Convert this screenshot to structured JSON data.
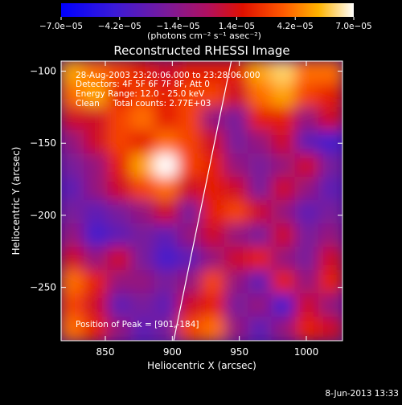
{
  "chart_data": {
    "type": "heatmap",
    "title": "Reconstructed RHESSI Image",
    "xlabel": "Heliocentric X (arcsec)",
    "ylabel": "Heliocentric Y (arcsec)",
    "xlim": [
      817,
      1027
    ],
    "ylim": [
      -287,
      -93
    ],
    "x_ticks": [
      850,
      900,
      950,
      1000
    ],
    "x_tick_labels": [
      "850",
      "900",
      "950",
      "1000"
    ],
    "y_ticks": [
      -100,
      -150,
      -200,
      -250
    ],
    "y_tick_labels": [
      "−100",
      "−150",
      "−200",
      "−250"
    ],
    "colorbar": {
      "min": -7e-05,
      "max": 7e-05,
      "tick_labels": [
        "−7.0e−05",
        "−4.2e−05",
        "−1.4e−05",
        "1.4e−05",
        "4.2e−05",
        "7.0e−05"
      ],
      "units_label": "(photons cm⁻² s⁻¹ asec⁻²)"
    },
    "annotations": {
      "time_range": "28-Aug-2003 23:20:06.000 to 23:28:06.000",
      "detectors": "Detectors: 4F 5F 6F 7F 8F, Att 0",
      "energy_range": "Energy Range: 12.0 - 25.0 keV",
      "clean_counts": "Clean     Total counts: 2.77E+03",
      "peak_position": "Position of Peak = [901,-184]"
    },
    "limb_line": [
      [
        901,
        -287
      ],
      [
        944,
        -93
      ]
    ],
    "intensity_grid": {
      "rows": 12,
      "cols": 12,
      "orientation": "row 0 = top (y = -93), col 0 = left (x = 817)",
      "values": [
        [
          5e-05,
          4e-05,
          3e-05,
          2e-05,
          1e-05,
          2e-05,
          2e-05,
          2e-05,
          5e-05,
          6e-05,
          4e-05,
          4e-05
        ],
        [
          4e-05,
          5e-05,
          2e-05,
          3e-05,
          2e-05,
          3e-05,
          3e-05,
          1e-05,
          4e-05,
          5e-05,
          3e-05,
          2e-05
        ],
        [
          1e-05,
          1e-05,
          3e-05,
          4e-05,
          2e-05,
          3e-05,
          -1e-05,
          -2e-05,
          2e-05,
          2e-05,
          -1e-05,
          1e-05
        ],
        [
          -1e-05,
          1e-05,
          3e-05,
          2e-05,
          4e-05,
          3e-05,
          1e-05,
          -2e-05,
          -1e-05,
          1e-05,
          -3e-05,
          -4e-05
        ],
        [
          -2e-05,
          -1e-05,
          2e-05,
          5e-05,
          7e-05,
          3e-05,
          2e-05,
          -1e-05,
          -2e-05,
          -1e-05,
          1e-05,
          -2e-05
        ],
        [
          -3e-05,
          -1e-05,
          1e-05,
          3e-05,
          4e-05,
          1e-05,
          2e-05,
          1e-05,
          -2e-05,
          1e-05,
          -1e-05,
          -3e-05
        ],
        [
          -2e-05,
          -3e-05,
          -2e-05,
          -1e-05,
          1e-05,
          -2e-05,
          2e-05,
          3e-05,
          1e-05,
          -1e-05,
          -3e-05,
          -2e-05
        ],
        [
          -1e-05,
          -4e-05,
          -3e-05,
          -2e-05,
          -3e-05,
          -1e-05,
          1e-05,
          -1e-05,
          -2e-05,
          1e-05,
          -2e-05,
          -1e-05
        ],
        [
          1e-05,
          -1e-05,
          1e-05,
          -2e-05,
          -4e-05,
          -3e-05,
          -1e-05,
          1e-05,
          2e-05,
          -1e-05,
          -2e-05,
          1e-05
        ],
        [
          4e-05,
          2e-05,
          -1e-05,
          -1e-05,
          -2e-05,
          -1e-05,
          3e-05,
          -1e-05,
          -3e-05,
          2e-05,
          -1e-05,
          2e-05
        ],
        [
          3e-05,
          1e-05,
          -3e-05,
          -2e-05,
          -3e-05,
          1e-05,
          2e-05,
          -2e-05,
          -1e-05,
          -4e-05,
          1e-05,
          -1e-05
        ],
        [
          4e-05,
          2e-05,
          -1e-05,
          -3e-05,
          -2e-05,
          3e-05,
          4e-05,
          -1e-05,
          -3e-05,
          -1e-05,
          2e-05,
          1e-05
        ]
      ]
    }
  },
  "footer": {
    "timestamp": "8-Jun-2013 13:33"
  }
}
